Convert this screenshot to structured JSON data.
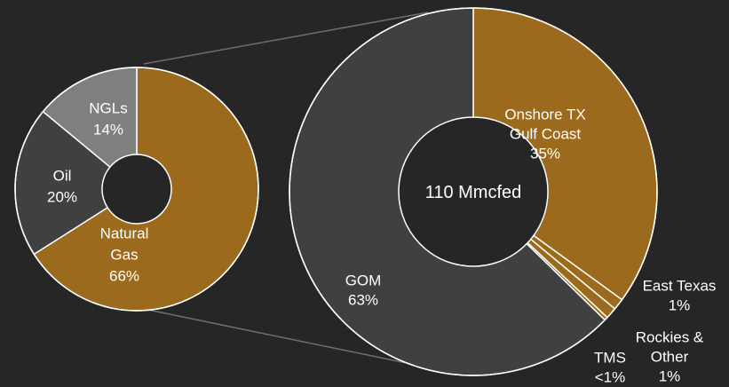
{
  "chart_data": [
    {
      "type": "pie",
      "style": "donut",
      "categories": [
        "Natural Gas",
        "Oil",
        "NGLs"
      ],
      "values": [
        66,
        20,
        14
      ],
      "labels": [
        [
          "Natural",
          "Gas",
          "66%"
        ],
        [
          "Oil",
          "20%"
        ],
        [
          "NGLs",
          "14%"
        ]
      ],
      "colors": [
        "#9c6a1c",
        "#404040",
        "#7f7f7f"
      ]
    },
    {
      "type": "pie",
      "style": "donut",
      "center_label": "110 Mmcfed",
      "categories": [
        "Onshore TX Gulf Coast",
        "East Texas",
        "Rockies & Other",
        "TMS",
        "GOM"
      ],
      "values": [
        35,
        1,
        1,
        0.3,
        62.7
      ],
      "labels": [
        [
          "Onshore TX",
          "Gulf Coast",
          "35%"
        ],
        [
          "East Texas",
          "1%"
        ],
        [
          "Rockies &",
          "Other",
          "1%"
        ],
        [
          "TMS",
          "<1%"
        ],
        [
          "GOM",
          "63%"
        ]
      ],
      "colors": [
        "#9c6a1c",
        "#9c6a1c",
        "#9c6a1c",
        "#9c6a1c",
        "#404040"
      ]
    }
  ]
}
